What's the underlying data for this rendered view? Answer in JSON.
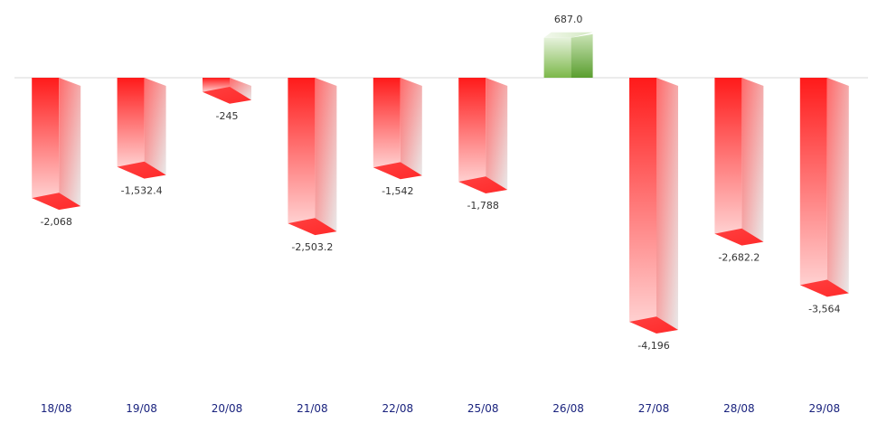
{
  "chart_data": {
    "type": "bar",
    "categories": [
      "18/08",
      "19/08",
      "20/08",
      "21/08",
      "22/08",
      "25/08",
      "26/08",
      "27/08",
      "28/08",
      "29/08"
    ],
    "values": [
      -2068,
      -1532.4,
      -245,
      -2503.2,
      -1542,
      -1788,
      687.0,
      -4196,
      -2682.2,
      -3564
    ],
    "data_labels": [
      "-2,068",
      "-1,532.4",
      "-245",
      "-2,503.2",
      "-1,542",
      "-1,788",
      "687.0",
      "-4,196",
      "-2,682.2",
      "-3,564"
    ],
    "title": "",
    "xlabel": "",
    "ylabel": "",
    "ylim": [
      -4196,
      687
    ],
    "grid": false,
    "legend": "none",
    "colors": {
      "negative": "#ff1a1a",
      "negative_light": "#e8e8e8",
      "positive": "#5a9e2f",
      "positive_light": "#e6f2dc",
      "baseline": "#d9d9d9",
      "tick_label": "#1a237e"
    }
  }
}
